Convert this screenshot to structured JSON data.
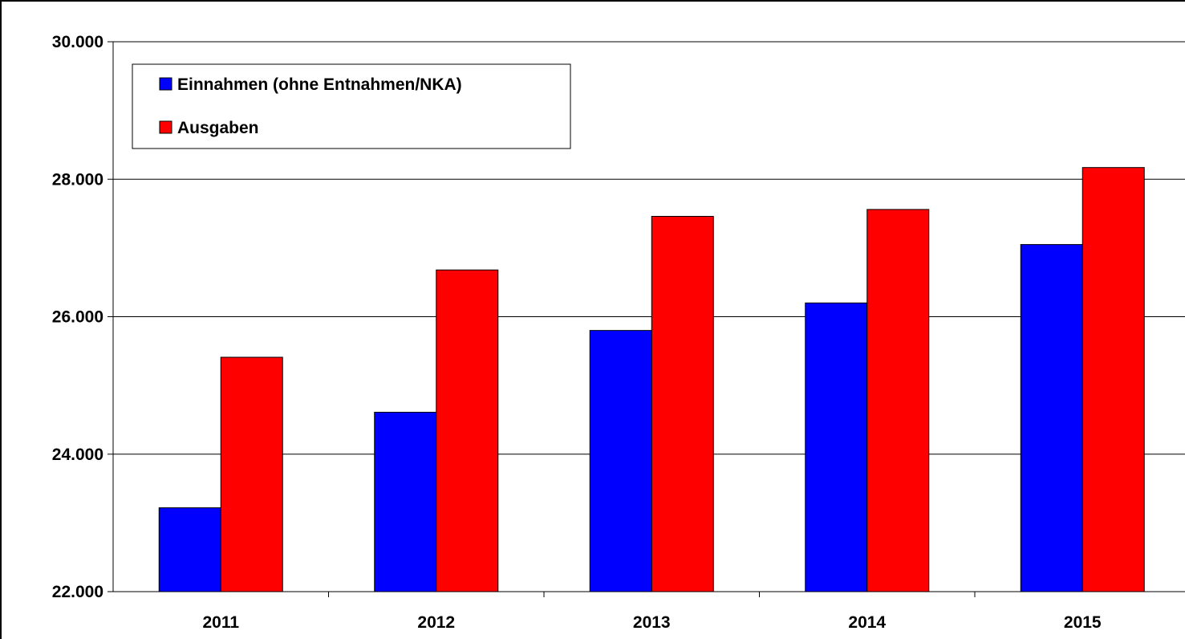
{
  "chart_data": {
    "type": "bar",
    "categories": [
      "2011",
      "2012",
      "2013",
      "2014",
      "2015"
    ],
    "series": [
      {
        "name": "Einnahmen (ohne Entnahmen/NKA)",
        "color": "#0000ff",
        "values": [
          23220,
          24610,
          25800,
          26200,
          27050
        ]
      },
      {
        "name": "Ausgaben",
        "color": "#ff0000",
        "values": [
          25410,
          26680,
          27460,
          27560,
          28170
        ]
      }
    ],
    "ylim": [
      22000,
      30000
    ],
    "yticks": [
      22000,
      24000,
      26000,
      28000,
      30000
    ],
    "ytick_labels": [
      "22.000",
      "24.000",
      "26.000",
      "28.000",
      "30.000"
    ],
    "grid": true,
    "legend_position": "top-left",
    "title": "",
    "xlabel": "",
    "ylabel": ""
  }
}
